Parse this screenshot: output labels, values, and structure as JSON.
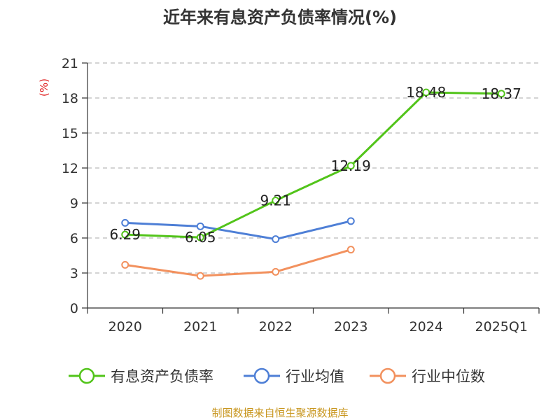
{
  "chart_data": {
    "type": "line",
    "title": "近年来有息资产负债率情况(%)",
    "ylabel": "(%)",
    "xlabel": "",
    "categories": [
      "2020",
      "2021",
      "2022",
      "2023",
      "2024",
      "2025Q1"
    ],
    "ylim": [
      0,
      21
    ],
    "yticks": [
      0,
      3,
      6,
      9,
      12,
      15,
      18,
      21
    ],
    "grid": true,
    "legend_position": "bottom",
    "series": [
      {
        "name": "有息资产负债率",
        "color": "#52c41a",
        "values": [
          6.29,
          6.05,
          9.21,
          12.19,
          18.48,
          18.37
        ],
        "show_labels": true
      },
      {
        "name": "行业均值",
        "color": "#4e7fd6",
        "values": [
          7.3,
          7.0,
          5.9,
          7.45,
          null,
          null
        ],
        "show_labels": false
      },
      {
        "name": "行业中位数",
        "color": "#f2915e",
        "values": [
          3.7,
          2.75,
          3.1,
          5.0,
          null,
          null
        ],
        "show_labels": false
      }
    ],
    "data_labels": [
      "6.29",
      "6.05",
      "9.21",
      "12.19",
      "18.48",
      "18.37"
    ],
    "source": "制图数据来自恒生聚源数据库"
  }
}
